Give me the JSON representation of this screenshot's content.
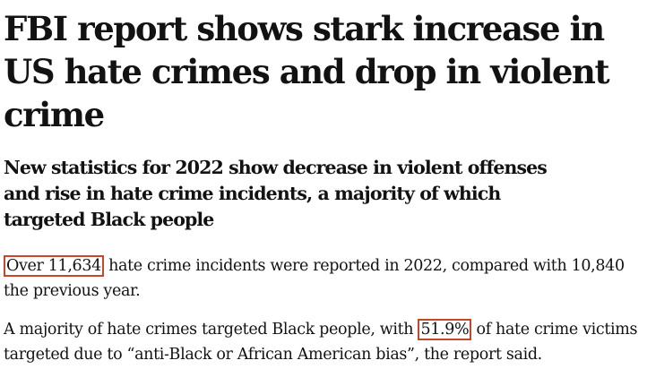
{
  "article": {
    "headline": "FBI report shows stark increase in US hate crimes and drop in violent crime",
    "standfirst": "New statistics for 2022 show decrease in violent offenses and rise in hate crime incidents, a majority of which targeted Black people",
    "paragraphs": [
      {
        "highlight": "Over 11,634",
        "after": " hate crime incidents were reported in 2022, compared with 10,840 the previous year."
      },
      {
        "before": "A majority of hate crimes targeted Black people, with ",
        "highlight": "51.9%",
        "after": " of hate crime victims targeted due to “anti-Black or African American bias”, the report said."
      }
    ],
    "highlight_color": "#c8472b"
  }
}
